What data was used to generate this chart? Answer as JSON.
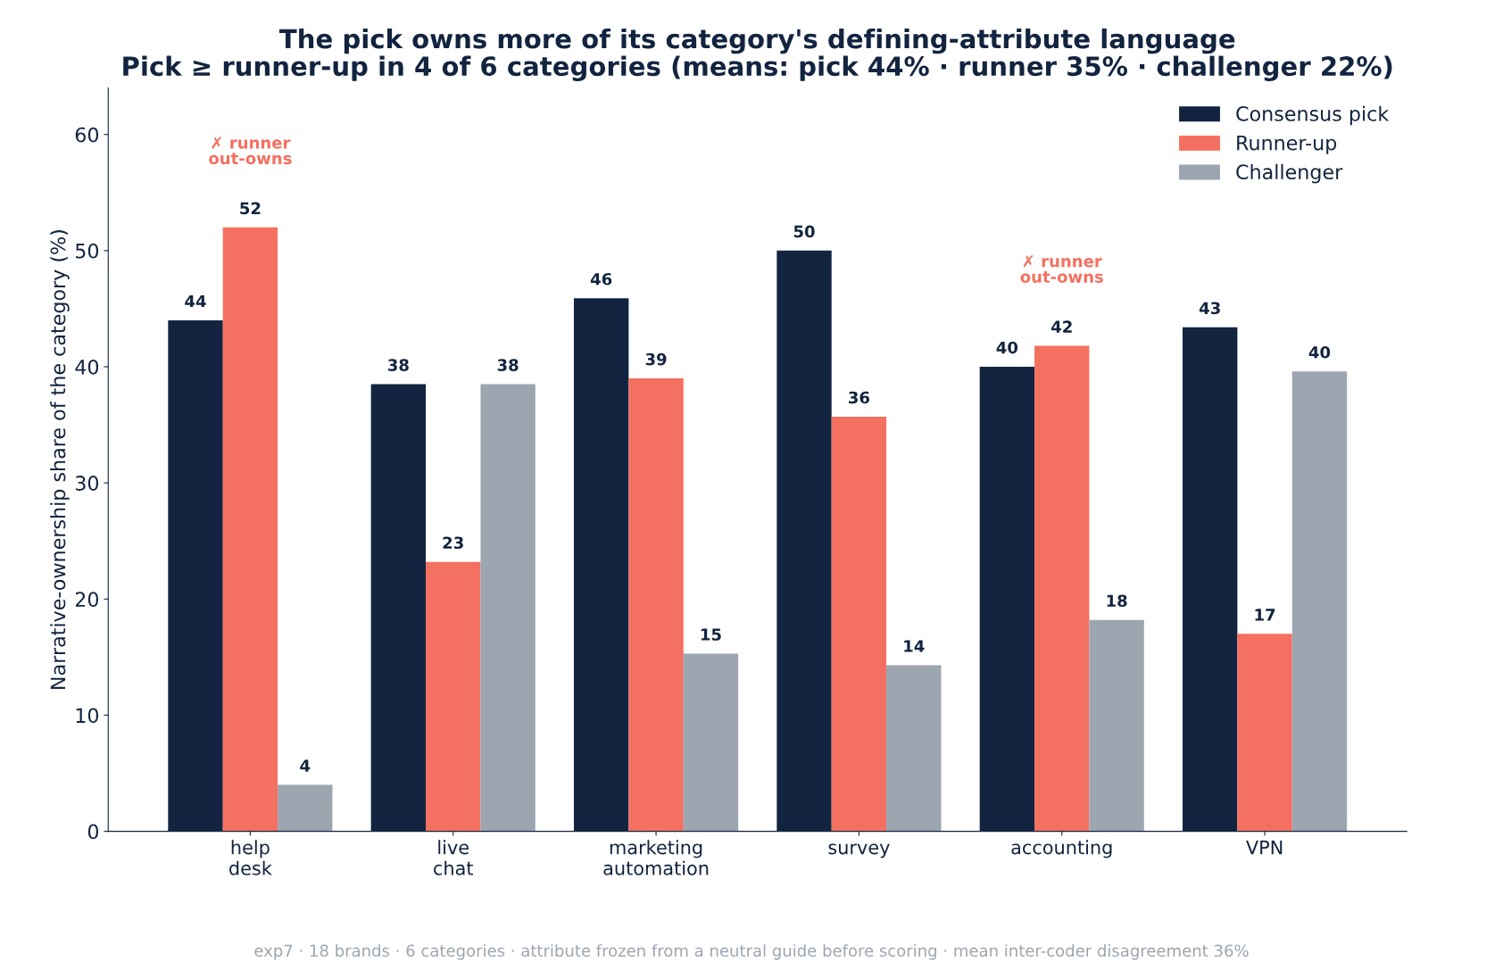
{
  "chart_data": {
    "type": "bar",
    "title": "The pick owns more of its category's defining-attribute language\nPick ≥ runner-up in 4 of 6 categories (means: pick 44% · runner 35% · challenger 22%)",
    "ylabel": "Narrative-ownership share of the category (%)",
    "categories": [
      "help\ndesk",
      "live\nchat",
      "marketing\nautomation",
      "survey",
      "accounting",
      "VPN"
    ],
    "series": [
      {
        "name": "Consensus pick",
        "color": "#12243f",
        "values": [
          44.0,
          38.5,
          45.9,
          50.0,
          40.0,
          43.4
        ],
        "value_labels": [
          "44",
          "38",
          "46",
          "50",
          "40",
          "43"
        ]
      },
      {
        "name": "Runner-up",
        "color": "#f47060",
        "values": [
          52.0,
          23.2,
          39.0,
          35.7,
          41.8,
          17.0
        ],
        "value_labels": [
          "52",
          "23",
          "39",
          "36",
          "42",
          "17"
        ]
      },
      {
        "name": "Challenger",
        "color": "#9ca5b0",
        "values": [
          4.0,
          38.5,
          15.3,
          14.3,
          18.2,
          39.6
        ],
        "value_labels": [
          "4",
          "38",
          "15",
          "14",
          "18",
          "40"
        ]
      }
    ],
    "ylim": [
      0,
      64
    ],
    "yticks": [
      0,
      10,
      20,
      30,
      40,
      50,
      60
    ],
    "grid": false,
    "legend": "top right",
    "annotations": [
      "✗ runner\nout-owns",
      "✗ runner\nout-owns",
      "exp7 · 18 brands · 6 categories · attribute frozen from a neutral guide before scoring · mean inter-coder disagreement 36%"
    ]
  }
}
